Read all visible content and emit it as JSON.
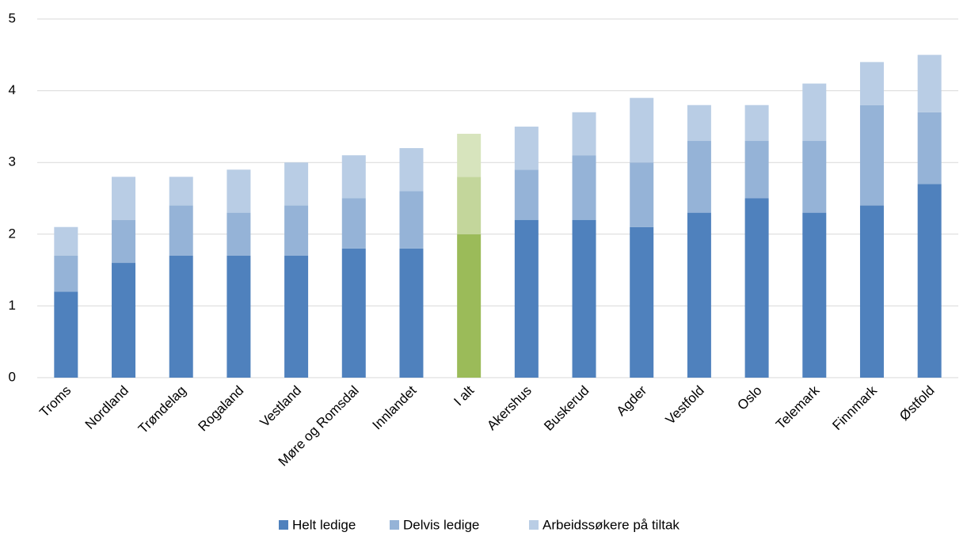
{
  "chart_data": {
    "type": "stacked_bar",
    "categories": [
      "Troms",
      "Nordland",
      "Trøndelag",
      "Rogaland",
      "Vestland",
      "Møre og Romsdal",
      "Innlandet",
      "I alt",
      "Akershus",
      "Buskerud",
      "Agder",
      "Vestfold",
      "Oslo",
      "Telemark",
      "Finnmark",
      "Østfold"
    ],
    "series": [
      {
        "name": "Helt ledige",
        "color": "#4f81bd",
        "highlight_color": "#9bbb59",
        "values": [
          1.2,
          1.6,
          1.7,
          1.7,
          1.7,
          1.8,
          1.8,
          2.0,
          2.2,
          2.2,
          2.1,
          2.3,
          2.5,
          2.3,
          2.4,
          2.7
        ]
      },
      {
        "name": "Delvis ledige",
        "color": "#95b3d7",
        "highlight_color": "#c3d69b",
        "values": [
          0.5,
          0.6,
          0.7,
          0.6,
          0.7,
          0.7,
          0.8,
          0.8,
          0.7,
          0.9,
          0.9,
          1.0,
          0.8,
          1.0,
          1.4,
          1.0
        ]
      },
      {
        "name": "Arbeidssøkere på tiltak",
        "color": "#b9cde5",
        "highlight_color": "#d7e4bd",
        "values": [
          0.4,
          0.6,
          0.4,
          0.6,
          0.6,
          0.6,
          0.6,
          0.6,
          0.6,
          0.6,
          0.9,
          0.5,
          0.5,
          0.8,
          0.6,
          0.8
        ]
      }
    ],
    "highlight_category": "I alt",
    "ylim": [
      0,
      5
    ],
    "yticks": [
      0,
      1,
      2,
      3,
      4,
      5
    ],
    "grid": true,
    "legend": "bottom"
  }
}
